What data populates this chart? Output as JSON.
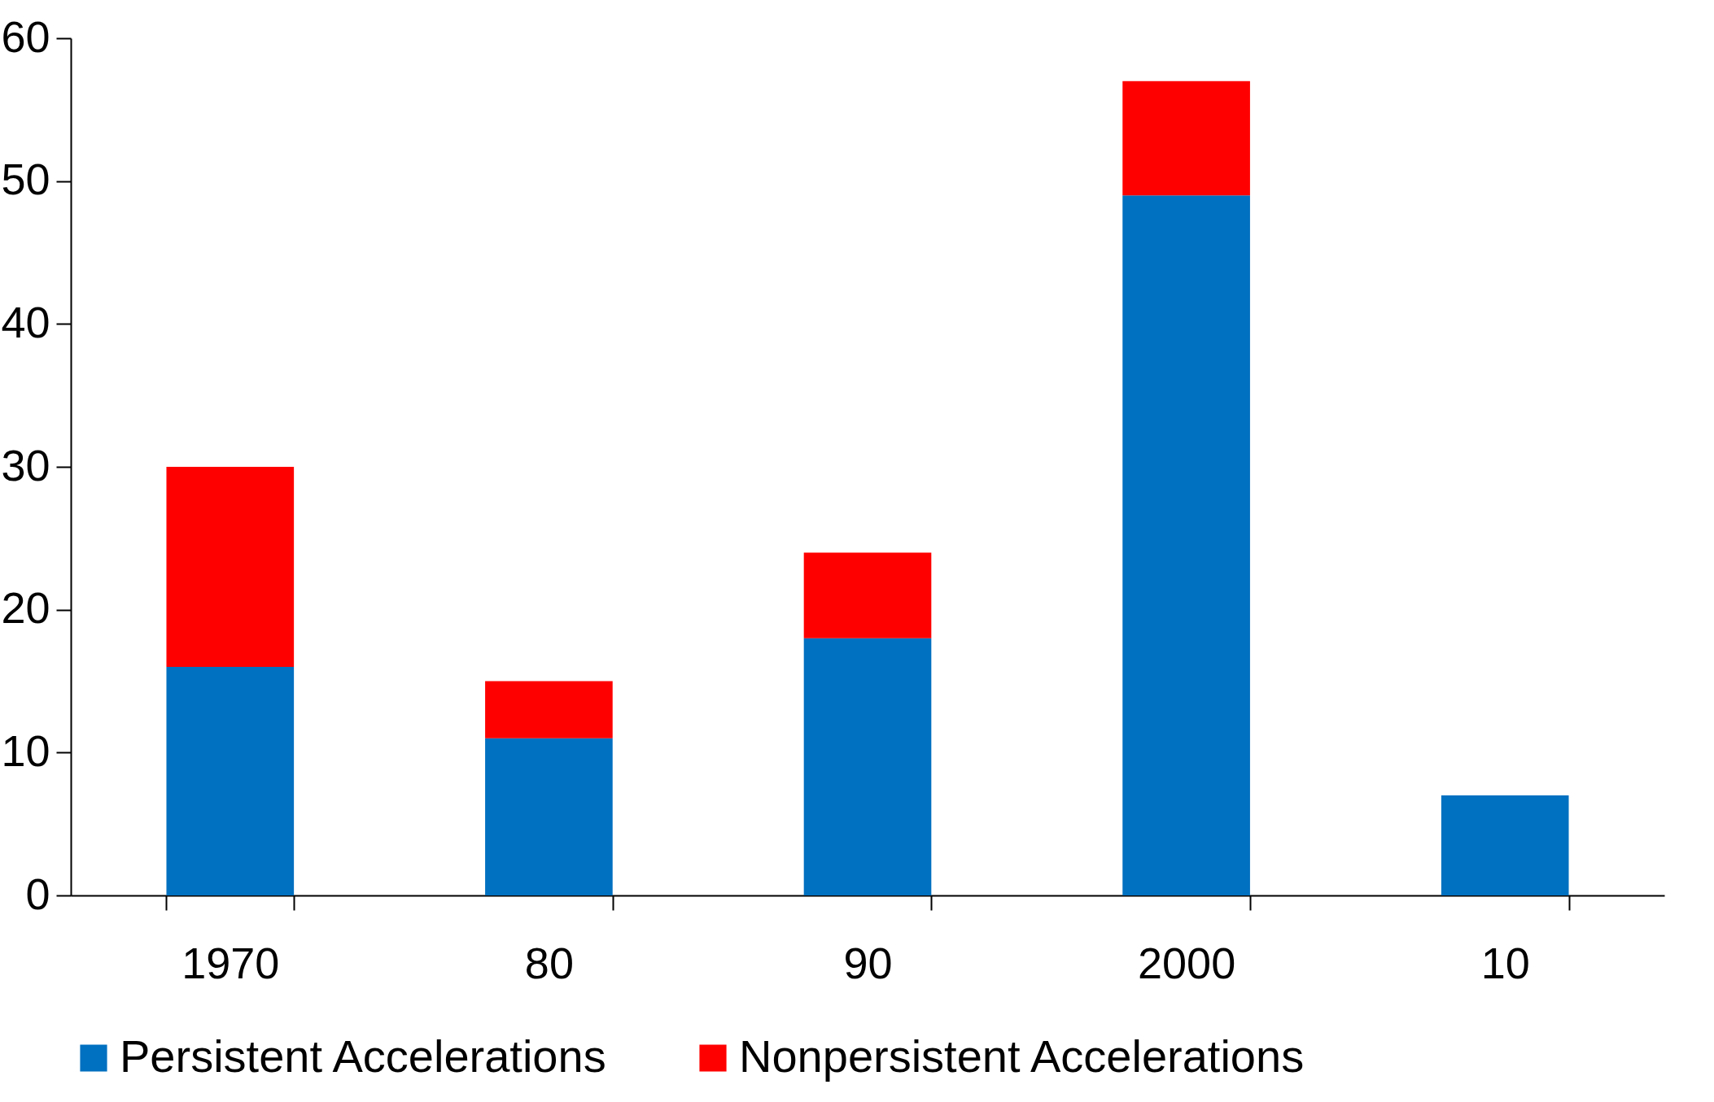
{
  "chart_data": {
    "type": "bar",
    "stacked": true,
    "categories": [
      "1970",
      "80",
      "90",
      "2000",
      "10"
    ],
    "series": [
      {
        "name": "Persistent Accelerations",
        "color": "#0070c0",
        "values": [
          16,
          11,
          18,
          49,
          7
        ]
      },
      {
        "name": "Nonpersistent Accelerations",
        "color": "#ff0000",
        "values": [
          14,
          4,
          6,
          8,
          0
        ]
      }
    ],
    "ylim": [
      0,
      60
    ],
    "yticks": [
      0,
      10,
      20,
      30,
      40,
      50,
      60
    ],
    "grid": false,
    "legend": "bottom"
  }
}
